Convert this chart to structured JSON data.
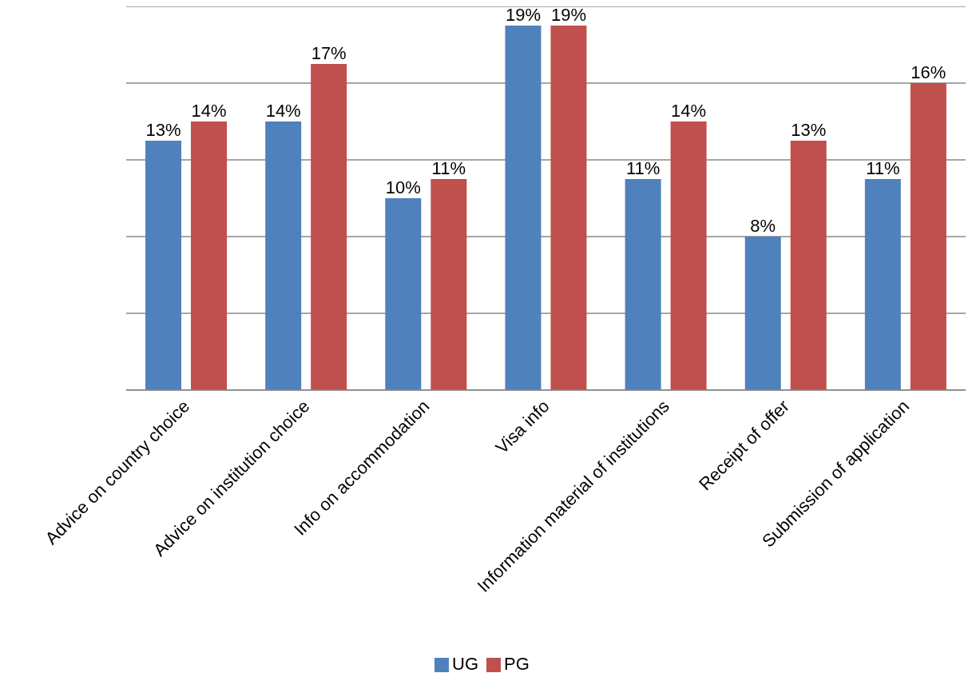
{
  "chart_data": {
    "type": "bar",
    "categories": [
      "Advice on country choice",
      "Advice on institution choice",
      "Info on accommodation",
      "Visa info",
      "Information material of institutions",
      "Receipt of offer",
      "Submission of application"
    ],
    "series": [
      {
        "name": "UG",
        "color": "#4f81bd",
        "values": [
          13,
          14,
          10,
          19,
          11,
          8,
          11
        ],
        "value_labels": [
          "13%",
          "14%",
          "10%",
          "19%",
          "11%",
          "8%",
          "11%"
        ]
      },
      {
        "name": "PG",
        "color": "#c0504d",
        "values": [
          14,
          17,
          11,
          19,
          14,
          13,
          16
        ],
        "value_labels": [
          "14%",
          "17%",
          "11%",
          "19%",
          "14%",
          "13%",
          "16%"
        ]
      }
    ],
    "grid": "y",
    "tick_labels": "x",
    "legend": "bottom"
  }
}
